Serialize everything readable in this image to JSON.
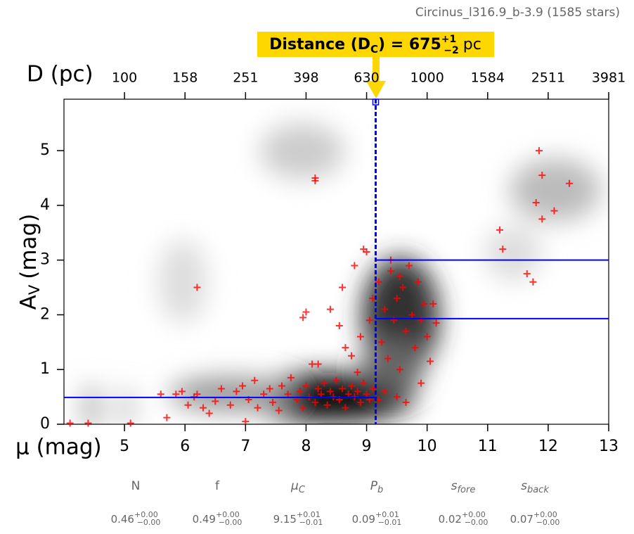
{
  "chart_data": {
    "type": "scatter",
    "title": "Circinus_l316.9_b-3.9 (1585 stars)",
    "x_label": "μ (mag)",
    "x2_label": "D (pc)",
    "y_label": {
      "main": "A",
      "sub": "V",
      "unit": "(mag)"
    },
    "xlim": [
      4,
      13
    ],
    "xticks": [
      5,
      6,
      7,
      8,
      9,
      10,
      11,
      12,
      13
    ],
    "x2ticks": [
      {
        "value": 5,
        "label": "100"
      },
      {
        "value": 6,
        "label": "158"
      },
      {
        "value": 7,
        "label": "251"
      },
      {
        "value": 8,
        "label": "398"
      },
      {
        "value": 9,
        "label": "630"
      },
      {
        "value": 10,
        "label": "1000"
      },
      {
        "value": 11,
        "label": "1584"
      },
      {
        "value": 12,
        "label": "2511"
      },
      {
        "value": 13,
        "label": "3981"
      }
    ],
    "ylim": [
      0,
      5.94
    ],
    "yticks": [
      0,
      1,
      2,
      3,
      4,
      5
    ],
    "color": "#ff0000",
    "line_color": "#0000ff",
    "distance_modulus": 9.15,
    "foreground_av": 0.49,
    "background_av": [
      1.93,
      3.0
    ],
    "distance": {
      "prefix": "Distance (D",
      "sub": "C",
      "mid": ") = ",
      "value": 675,
      "plus": "+1",
      "minus": "−2",
      "unit": "pc"
    },
    "x": [
      4.1,
      4.4,
      5.1,
      5.6,
      5.7,
      5.85,
      5.95,
      6.05,
      6.15,
      6.2,
      6.3,
      6.4,
      6.5,
      6.6,
      6.75,
      6.85,
      6.95,
      7.0,
      7.05,
      7.15,
      7.2,
      7.3,
      7.4,
      7.45,
      7.55,
      7.6,
      7.7,
      7.75,
      7.85,
      7.9,
      7.95,
      8.0,
      8.05,
      8.1,
      8.15,
      8.2,
      8.25,
      8.3,
      8.35,
      8.4,
      8.45,
      8.5,
      8.55,
      8.6,
      8.65,
      8.7,
      8.75,
      8.8,
      8.85,
      8.9,
      8.95,
      9.0,
      9.05,
      9.1,
      8.0,
      7.95,
      8.2,
      8.4,
      8.55,
      8.6,
      8.65,
      8.75,
      8.8,
      8.85,
      8.9,
      8.95,
      9.0,
      9.05,
      9.1,
      9.2,
      9.25,
      9.3,
      9.35,
      9.4,
      9.45,
      9.5,
      9.55,
      9.6,
      9.65,
      9.7,
      9.75,
      9.8,
      9.85,
      9.9,
      9.95,
      10.0,
      10.05,
      10.1,
      10.15,
      9.3,
      9.5,
      9.65,
      9.2,
      9.4,
      9.55,
      9.9,
      8.15,
      8.15,
      6.2,
      11.85,
      11.9,
      12.35,
      11.8,
      12.1,
      11.9,
      11.2,
      11.25,
      11.65,
      11.75
    ],
    "y": [
      0.02,
      0.02,
      0.02,
      0.55,
      0.12,
      0.55,
      0.6,
      0.35,
      0.5,
      0.55,
      0.3,
      0.2,
      0.42,
      0.65,
      0.35,
      0.6,
      0.7,
      0.05,
      0.45,
      0.8,
      0.3,
      0.55,
      0.65,
      0.4,
      0.25,
      0.7,
      0.55,
      0.85,
      0.45,
      0.6,
      0.3,
      0.7,
      0.5,
      1.1,
      0.4,
      0.65,
      0.55,
      0.75,
      0.35,
      0.6,
      0.5,
      0.8,
      0.45,
      0.65,
      0.3,
      0.55,
      0.7,
      0.5,
      0.6,
      0.4,
      0.75,
      0.55,
      0.45,
      0.65,
      2.05,
      1.95,
      1.1,
      2.1,
      1.8,
      2.5,
      1.4,
      1.25,
      2.9,
      0.95,
      1.6,
      3.2,
      3.15,
      1.9,
      2.3,
      2.6,
      1.5,
      2.1,
      1.2,
      2.8,
      1.9,
      2.3,
      1.0,
      2.5,
      1.7,
      2.9,
      2.0,
      1.4,
      2.6,
      1.9,
      2.2,
      1.6,
      1.15,
      2.2,
      1.85,
      0.6,
      0.5,
      0.4,
      0.45,
      3.0,
      2.7,
      0.75,
      4.5,
      4.45,
      2.5,
      5.0,
      4.55,
      4.4,
      4.05,
      3.9,
      3.75,
      3.55,
      3.2,
      2.75,
      2.6
    ],
    "params": [
      {
        "name": "N",
        "value": 0.46,
        "plus": "+0.00",
        "minus": "−0.00"
      },
      {
        "name": "f",
        "value": 0.49,
        "plus": "+0.00",
        "minus": "−0.00"
      },
      {
        "name": "μ",
        "sub": "C",
        "value": 9.15,
        "plus": "+0.01",
        "minus": "−0.01"
      },
      {
        "name": "P",
        "sub": "b",
        "value": 0.09,
        "plus": "+0.01",
        "minus": "−0.01"
      },
      {
        "name": "s",
        "sub": "fore",
        "value": 0.02,
        "plus": "+0.00",
        "minus": "−0.00"
      },
      {
        "name": "s",
        "sub": "back",
        "value": 0.07,
        "plus": "+0.00",
        "minus": "−0.00"
      }
    ]
  }
}
